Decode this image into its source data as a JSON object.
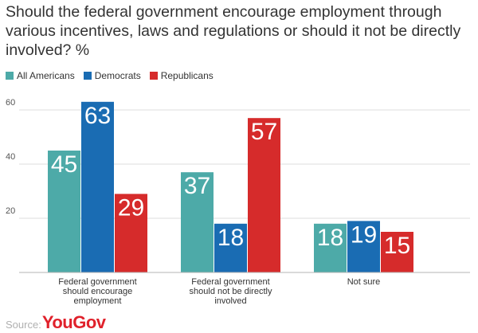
{
  "chart_data": {
    "type": "bar",
    "title": "Should the federal government encourage employment through various incentives, laws and regulations or should it not be directly involved? %",
    "categories": [
      [
        "Federal government",
        "should encourage",
        "employment"
      ],
      [
        "Federal government",
        "should not be directly",
        "involved"
      ],
      [
        "Not sure"
      ]
    ],
    "series": [
      {
        "name": "All Americans",
        "color": "#4daaa8",
        "values": [
          45,
          37,
          18
        ]
      },
      {
        "name": "Democrats",
        "color": "#1a6cb3",
        "values": [
          63,
          18,
          19
        ]
      },
      {
        "name": "Republicans",
        "color": "#d62b2b",
        "values": [
          29,
          57,
          15
        ]
      }
    ],
    "yticks": [
      20,
      40,
      60
    ],
    "ylim": [
      0,
      63
    ],
    "grid": true,
    "legend": "top-left",
    "xlabel": "",
    "ylabel": ""
  },
  "footer": {
    "source_label": "Source:",
    "logo_you": "You",
    "logo_gov": "Gov"
  }
}
